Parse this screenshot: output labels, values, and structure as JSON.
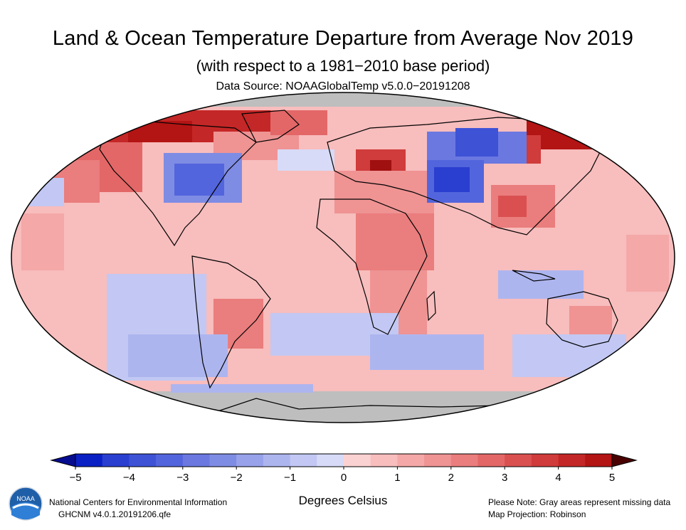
{
  "title": "Land & Ocean Temperature Departure from Average Nov 2019",
  "subtitle": "(with respect to a 1981−2010 base period)",
  "data_source": "Data Source: NOAAGlobalTemp v5.0.0−20191208",
  "colorbar": {
    "ticks": [
      "−5",
      "−4",
      "−3",
      "−2",
      "−1",
      "0",
      "1",
      "2",
      "3",
      "4",
      "5"
    ],
    "unit_label": "Degrees Celsius",
    "colors": [
      "#0a1fc4",
      "#2a3ed0",
      "#3e52d6",
      "#5365dc",
      "#6a78e0",
      "#7f8ce4",
      "#97a2ea",
      "#adb5ef",
      "#c2c8f3",
      "#d7dbf7",
      "#fbd2d2",
      "#f8bdbd",
      "#f4a8a8",
      "#ef9393",
      "#ea7d7d",
      "#e36767",
      "#da5050",
      "#d03b3b",
      "#c42727",
      "#b31414"
    ],
    "low_end_color": "#060c8f",
    "high_end_color": "#4a0000"
  },
  "map": {
    "projection": "Robinson",
    "missing_color": "#bebebe",
    "coastline_color": "#000000"
  },
  "footer": {
    "left_line1": "National Centers for Environmental Information",
    "left_line2": "GHCNM v4.0.1.20191206.qfe",
    "right_line1": "Please Note: Gray areas represent missing data",
    "right_line2": "Map Projection: Robinson"
  },
  "logo_text": "NOAA",
  "logo_icon": "noaa-logo-icon"
}
